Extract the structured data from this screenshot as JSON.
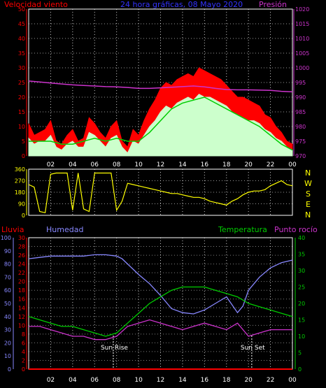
{
  "top_header": {
    "left": "Velocidad viento",
    "center": "24 hora gráficas, 08 Mayo 2020",
    "right": "Presión"
  },
  "bottom_header": {
    "lluvia": "Lluvia",
    "humedad": "Humedad",
    "temperatura": "Temperatura",
    "punto_rocio": "Punto rocío"
  },
  "wind_dir_letters": [
    "N",
    "W",
    "S",
    "E",
    "N"
  ],
  "sun_labels": {
    "rise": "Sun Rise",
    "set": "Sun Set"
  },
  "colors": {
    "wind_gust": "#ff0000",
    "wind_avg": "#ccffcc",
    "wind_trend": "#00cc00",
    "pressure": "#cc33cc",
    "wind_dir": "#ffff00",
    "humidity": "#8888ff",
    "temperature": "#00cc00",
    "dewpoint": "#cc33cc",
    "rain": "#ff0000"
  },
  "chart_data": [
    {
      "type": "area",
      "x_range": [
        0,
        24
      ],
      "x_tick_labels": [
        "02",
        "04",
        "06",
        "08",
        "10",
        "12",
        "14",
        "16",
        "18",
        "20",
        "22",
        "00"
      ],
      "left_axis": {
        "label": "Velocidad viento",
        "ylim": [
          0,
          50
        ],
        "ticks": [
          "0",
          "5",
          "10",
          "15",
          "20",
          "25",
          "30",
          "35",
          "40",
          "45",
          "50"
        ]
      },
      "right_axis": {
        "label": "Presión",
        "ylim": [
          970,
          1020
        ],
        "ticks": [
          "970",
          "975",
          "980",
          "985",
          "990",
          "995",
          "1000",
          "1005",
          "1010",
          "1015",
          "1020"
        ]
      },
      "series": [
        {
          "name": "Velocidad viento",
          "x": [
            0,
            0.5,
            1,
            1.5,
            2,
            2.5,
            3,
            3.5,
            4,
            4.5,
            5,
            5.5,
            6,
            6.5,
            7,
            7.5,
            8,
            8.5,
            9,
            9.5,
            10,
            10.5,
            11,
            11.5,
            12,
            12.5,
            13,
            13.5,
            14,
            14.5,
            15,
            15.5,
            16,
            16.5,
            17,
            17.5,
            18,
            18.5,
            19,
            19.5,
            20,
            20.5,
            21,
            21.5,
            22,
            22.5,
            23,
            23.5,
            24
          ],
          "values": [
            11,
            7,
            8,
            9,
            12,
            5,
            4,
            7,
            9,
            5,
            6,
            13,
            11,
            8,
            6,
            10,
            12,
            5,
            3,
            9,
            7,
            12,
            16,
            19,
            23,
            25,
            24,
            26,
            27,
            28,
            27,
            30,
            29,
            28,
            27,
            26,
            24,
            22,
            20,
            20,
            19,
            18,
            17,
            14,
            13,
            10,
            8,
            5,
            4
          ]
        },
        {
          "name": "Racha",
          "x": [
            0,
            0.5,
            1,
            1.5,
            2,
            2.5,
            3,
            3.5,
            4,
            4.5,
            5,
            5.5,
            6,
            6.5,
            7,
            7.5,
            8,
            8.5,
            9,
            9.5,
            10,
            10.5,
            11,
            11.5,
            12,
            12.5,
            13,
            13.5,
            14,
            14.5,
            15,
            15.5,
            16,
            16.5,
            17,
            17.5,
            18,
            18.5,
            19,
            19.5,
            20,
            20.5,
            21,
            21.5,
            22,
            22.5,
            23,
            23.5,
            24
          ],
          "values": [
            6,
            4,
            5,
            5,
            7,
            3,
            2,
            4,
            5,
            3,
            3,
            8,
            7,
            5,
            3,
            6,
            7,
            3,
            1,
            5,
            4,
            7,
            10,
            12,
            15,
            17,
            16,
            18,
            19,
            20,
            19,
            21,
            20,
            20,
            19,
            18,
            17,
            15,
            14,
            13,
            12,
            12,
            11,
            9,
            8,
            6,
            5,
            3,
            2
          ]
        },
        {
          "name": "Tendencia",
          "x": [
            0,
            1,
            2,
            3,
            4,
            5,
            6,
            7,
            8,
            9,
            10,
            11,
            12,
            13,
            14,
            15,
            16,
            17,
            18,
            19,
            20,
            21,
            22,
            23,
            24
          ],
          "values": [
            5,
            5,
            5,
            4,
            4,
            5,
            6,
            5,
            6,
            5,
            5,
            8,
            12,
            16,
            18,
            19,
            20,
            18,
            16,
            14,
            12,
            10,
            7,
            4,
            2
          ]
        },
        {
          "name": "Presión",
          "x": [
            0,
            1,
            2,
            3,
            4,
            5,
            6,
            7,
            8,
            9,
            10,
            11,
            12,
            13,
            14,
            15,
            16,
            17,
            18,
            19,
            20,
            21,
            22,
            23,
            24
          ],
          "values": [
            995.5,
            995.2,
            994.8,
            994.5,
            994.2,
            994.0,
            993.8,
            993.6,
            993.5,
            993.3,
            993.0,
            993.0,
            993.2,
            993.4,
            993.6,
            993.8,
            993.5,
            993.0,
            992.6,
            992.5,
            992.5,
            992.4,
            992.3,
            992.0,
            991.8
          ]
        }
      ]
    },
    {
      "type": "scatter",
      "x_range": [
        0,
        24
      ],
      "left_axis": {
        "ylim": [
          0,
          360
        ],
        "ticks": [
          "0",
          "90",
          "180",
          "270",
          "360"
        ]
      },
      "series": [
        {
          "name": "Dirección viento",
          "x": [
            0,
            0.5,
            1,
            1.5,
            2,
            2.5,
            3,
            3.5,
            4,
            4.5,
            5,
            5.5,
            6,
            6.5,
            7,
            7.5,
            8,
            8.5,
            9,
            9.5,
            10,
            10.5,
            11,
            11.5,
            12,
            12.5,
            13,
            13.5,
            14,
            14.5,
            15,
            15.5,
            16,
            16.5,
            17,
            17.5,
            18,
            18.5,
            19,
            19.5,
            20,
            20.5,
            21,
            21.5,
            22,
            22.5,
            23,
            23.5,
            24
          ],
          "values": [
            240,
            220,
            30,
            20,
            320,
            330,
            330,
            330,
            40,
            330,
            50,
            30,
            330,
            330,
            330,
            330,
            40,
            110,
            250,
            240,
            230,
            220,
            210,
            200,
            190,
            180,
            170,
            170,
            160,
            150,
            140,
            140,
            130,
            110,
            100,
            90,
            80,
            110,
            130,
            160,
            180,
            190,
            190,
            200,
            230,
            250,
            270,
            240,
            230
          ]
        }
      ]
    },
    {
      "type": "line",
      "x_range": [
        0,
        24
      ],
      "humidity_axis": {
        "ylim": [
          0,
          100
        ],
        "ticks": [
          "0",
          "10",
          "20",
          "30",
          "40",
          "50",
          "60",
          "70",
          "80",
          "90",
          "100"
        ]
      },
      "rain_axis": {
        "ylim": [
          0,
          30
        ],
        "ticks": [
          "0",
          "2",
          "4",
          "6",
          "8",
          "10",
          "12",
          "14",
          "16",
          "18",
          "20",
          "22",
          "24",
          "26",
          "28",
          "30"
        ]
      },
      "temp_axis": {
        "ylim": [
          0,
          40
        ],
        "ticks": [
          "0",
          "5",
          "10",
          "15",
          "20",
          "25",
          "30",
          "35",
          "40"
        ]
      },
      "sunrise_hour": 7.7,
      "sunset_hour": 20.3,
      "series": [
        {
          "name": "Humedad",
          "x": [
            0,
            1,
            2,
            3,
            4,
            5,
            6,
            7,
            8,
            8.5,
            9,
            10,
            11,
            12,
            13,
            14,
            15,
            16,
            17,
            18,
            19,
            19.5,
            20,
            21,
            22,
            23,
            24
          ],
          "values": [
            84,
            85,
            86,
            86,
            86,
            86,
            87,
            87,
            86,
            84,
            80,
            72,
            65,
            56,
            46,
            43,
            42,
            45,
            50,
            55,
            43,
            48,
            60,
            70,
            77,
            81,
            83
          ]
        },
        {
          "name": "Temperatura",
          "x": [
            0,
            1,
            2,
            3,
            4,
            5,
            6,
            7,
            8,
            9,
            10,
            11,
            12,
            13,
            14,
            15,
            16,
            17,
            18,
            19,
            20,
            21,
            22,
            23,
            24
          ],
          "values": [
            16,
            15,
            14,
            13,
            13,
            12,
            11,
            10,
            11,
            14,
            17,
            20,
            22,
            24,
            25,
            25,
            25,
            24,
            23,
            22,
            20,
            19,
            18,
            17,
            16
          ]
        },
        {
          "name": "Punto rocío",
          "x": [
            0,
            1,
            2,
            3,
            4,
            5,
            6,
            7,
            8,
            9,
            10,
            11,
            12,
            13,
            14,
            15,
            16,
            17,
            18,
            19,
            20,
            21,
            22,
            23,
            24
          ],
          "values": [
            13,
            13,
            12,
            11,
            10,
            10,
            9,
            9,
            10,
            13,
            14,
            15,
            14,
            13,
            12,
            13,
            14,
            13,
            12,
            14,
            10,
            11,
            12,
            12,
            12
          ]
        },
        {
          "name": "Lluvia",
          "x": [
            0,
            24
          ],
          "values": [
            0,
            0
          ]
        }
      ]
    }
  ]
}
